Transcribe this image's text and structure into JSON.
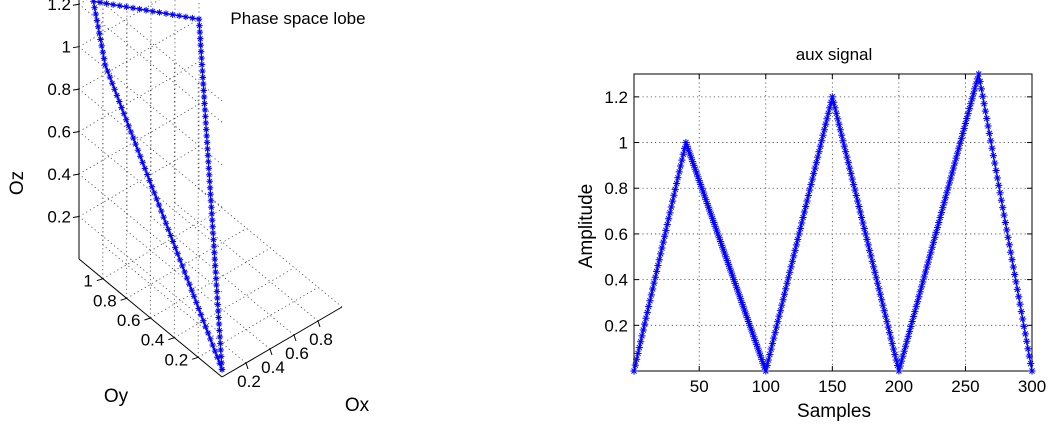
{
  "chart_data": [
    {
      "type": "line3d",
      "title": "Phase space lobe",
      "xlabel": "Ox",
      "ylabel": "Oy",
      "zlabel": "Oz",
      "xticks": [
        0.2,
        0.4,
        0.6,
        0.8
      ],
      "yticks": [
        0.2,
        0.4,
        0.6,
        0.8,
        1
      ],
      "zticks": [
        0.2,
        0.4,
        0.6,
        0.8,
        1,
        1.2
      ],
      "xlim": [
        0,
        1
      ],
      "ylim": [
        0,
        1.2
      ],
      "zlim": [
        0,
        1.3
      ],
      "grid": true,
      "marker": "*",
      "color": "#0000ff",
      "vertices": [
        {
          "x": 0.02,
          "y": 0.02,
          "z": 0.02
        },
        {
          "x": 0.02,
          "y": 1.0,
          "z": 1.0
        },
        {
          "x": 0.1,
          "y": 1.18,
          "z": 1.19
        },
        {
          "x": 1.0,
          "y": 1.2,
          "z": 0.8
        },
        {
          "x": 0.02,
          "y": 0.02,
          "z": 0.02
        }
      ]
    },
    {
      "type": "line",
      "title": "aux signal",
      "xlabel": "Samples",
      "ylabel": "Amplitude",
      "xlim": [
        1,
        300
      ],
      "ylim": [
        0,
        1.3
      ],
      "xticks": [
        50,
        100,
        150,
        200,
        250,
        300
      ],
      "yticks": [
        0.2,
        0.4,
        0.6,
        0.8,
        1,
        1.2
      ],
      "grid": true,
      "marker": "*",
      "color": "#0000ff",
      "series": [
        {
          "x": [
            1,
            40,
            100,
            150,
            200,
            260,
            300
          ],
          "y": [
            0.0,
            1.0,
            0.0,
            1.2,
            0.0,
            1.3,
            0.0
          ]
        }
      ]
    }
  ]
}
